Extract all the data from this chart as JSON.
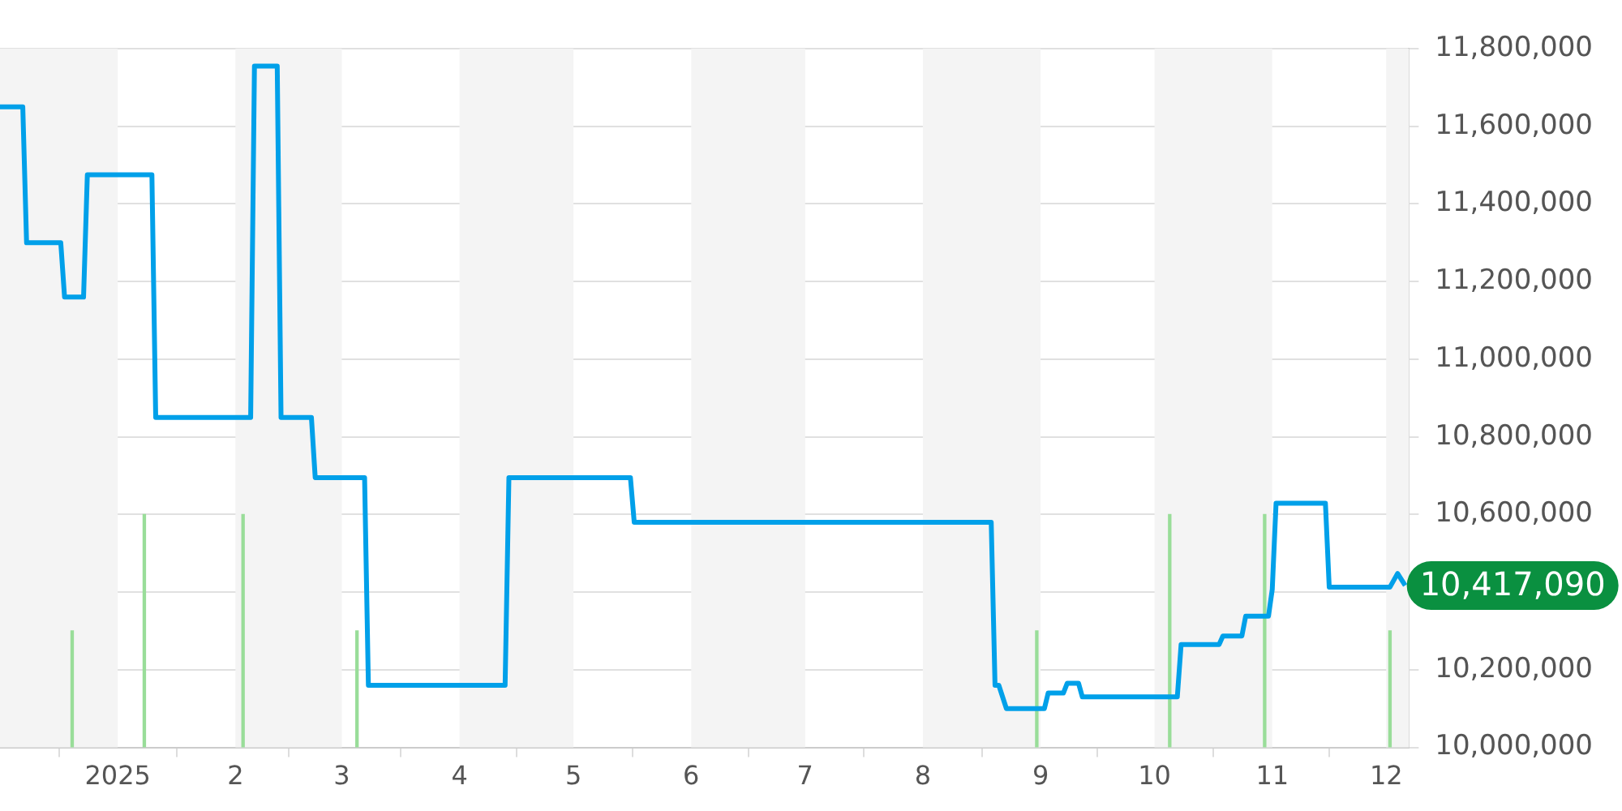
{
  "chart_data": {
    "type": "line",
    "xlim": [
      "2024-12-01",
      "2025-12-07"
    ],
    "xticks": [
      {
        "value": "2025-01-01",
        "label": "2025"
      },
      {
        "value": "2025-02-01",
        "label": "2"
      },
      {
        "value": "2025-03-01",
        "label": "3"
      },
      {
        "value": "2025-04-01",
        "label": "4"
      },
      {
        "value": "2025-05-01",
        "label": "5"
      },
      {
        "value": "2025-06-01",
        "label": "6"
      },
      {
        "value": "2025-07-01",
        "label": "7"
      },
      {
        "value": "2025-08-01",
        "label": "8"
      },
      {
        "value": "2025-09-01",
        "label": "9"
      },
      {
        "value": "2025-10-01",
        "label": "10"
      },
      {
        "value": "2025-11-01",
        "label": "11"
      },
      {
        "value": "2025-12-01",
        "label": "12"
      }
    ],
    "ylim": [
      10000000,
      11800000
    ],
    "yticks": [
      {
        "value": 10000000,
        "label": "10,000,000"
      },
      {
        "value": 10200000,
        "label": "10,200,000"
      },
      {
        "value": 10400000,
        "label": null
      },
      {
        "value": 10600000,
        "label": "10,600,000"
      },
      {
        "value": 10800000,
        "label": "10,800,000"
      },
      {
        "value": 11000000,
        "label": "11,000,000"
      },
      {
        "value": 11200000,
        "label": "11,200,000"
      },
      {
        "value": 11400000,
        "label": "11,400,000"
      },
      {
        "value": 11600000,
        "label": "11,600,000"
      },
      {
        "value": 11800000,
        "label": "11,800,000"
      }
    ],
    "grid": "y",
    "legend": false,
    "marker": "none",
    "line_style": "solid",
    "series": [
      {
        "color": "#00a0e9",
        "x": [
          "2024-12-01",
          "2024-12-07",
          "2024-12-08",
          "2024-12-17",
          "2024-12-18",
          "2024-12-23",
          "2024-12-24",
          "2025-01-10",
          "2025-01-11",
          "2025-02-05",
          "2025-02-06",
          "2025-02-12",
          "2025-02-13",
          "2025-02-21",
          "2025-02-22",
          "2025-03-07",
          "2025-03-08",
          "2025-04-13",
          "2025-04-14",
          "2025-05-16",
          "2025-05-17",
          "2025-08-19",
          "2025-08-20",
          "2025-08-21",
          "2025-08-23",
          "2025-09-02",
          "2025-09-03",
          "2025-09-07",
          "2025-09-08",
          "2025-09-11",
          "2025-09-12",
          "2025-10-07",
          "2025-10-08",
          "2025-10-18",
          "2025-10-19",
          "2025-10-24",
          "2025-10-25",
          "2025-10-31",
          "2025-11-01",
          "2025-11-02",
          "2025-11-15",
          "2025-11-16",
          "2025-12-02",
          "2025-12-04",
          "2025-12-06"
        ],
        "values": [
          11650000,
          11650000,
          11300000,
          11300000,
          11160000,
          11160000,
          11475000,
          11475000,
          10850000,
          10850000,
          11755000,
          11755000,
          10850000,
          10850000,
          10695000,
          10695000,
          10160000,
          10160000,
          10695000,
          10695000,
          10580000,
          10580000,
          10160000,
          10160000,
          10100000,
          10100000,
          10140000,
          10140000,
          10165000,
          10165000,
          10130000,
          10130000,
          10265000,
          10265000,
          10287000,
          10287000,
          10338000,
          10338000,
          10407000,
          10629000,
          10629000,
          10413000,
          10413000,
          10448000,
          10417090
        ]
      },
      {
        "type": "bar",
        "color": "#99dd99",
        "x": [
          "2024-12-20",
          "2025-01-08",
          "2025-02-03",
          "2025-03-05",
          "2025-08-31",
          "2025-10-05",
          "2025-10-30",
          "2025-12-02"
        ],
        "values": [
          10300000,
          10600000,
          10600000,
          10300000,
          10300000,
          10600000,
          10600000,
          10300000
        ]
      }
    ],
    "bands": [
      {
        "axis": "x",
        "from": "2024-12-01",
        "to": "2025-01-01",
        "color": "#f4f4f4"
      },
      {
        "axis": "x",
        "from": "2025-02-01",
        "to": "2025-03-01",
        "color": "#f4f4f4"
      },
      {
        "axis": "x",
        "from": "2025-04-01",
        "to": "2025-05-01",
        "color": "#f4f4f4"
      },
      {
        "axis": "x",
        "from": "2025-06-01",
        "to": "2025-07-01",
        "color": "#f4f4f4"
      },
      {
        "axis": "x",
        "from": "2025-08-01",
        "to": "2025-09-01",
        "color": "#f4f4f4"
      },
      {
        "axis": "x",
        "from": "2025-10-01",
        "to": "2025-11-01",
        "color": "#f4f4f4"
      },
      {
        "axis": "x",
        "from": "2025-12-01",
        "to": "2025-12-07",
        "color": "#f4f4f4"
      }
    ],
    "annotations": [
      {
        "text": "10,417,090",
        "x": "2025-12-06",
        "y": 10417090
      }
    ]
  }
}
